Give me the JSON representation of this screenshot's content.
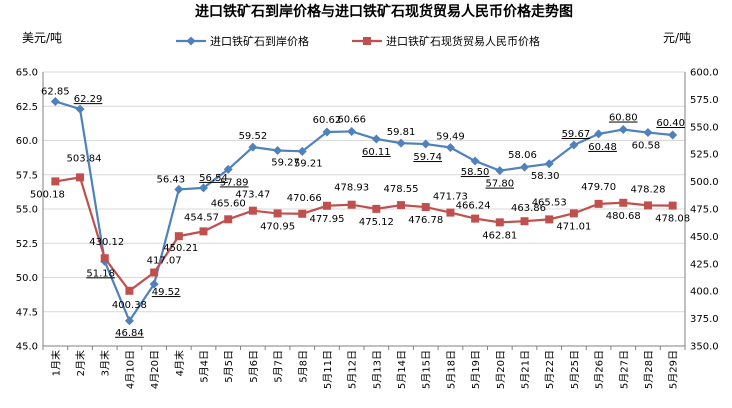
{
  "chart_data": {
    "type": "line",
    "title": "进口铁矿石到岸价格与进口铁矿石现货贸易人民币价格走势图",
    "ylabel_left": "美元/吨",
    "ylabel_right": "元/吨",
    "ylim_left": [
      45.0,
      65.0
    ],
    "yticks_left": [
      "45.0",
      "47.5",
      "50.0",
      "52.5",
      "55.0",
      "57.5",
      "60.0",
      "62.5",
      "65.0"
    ],
    "ylim_right": [
      350.0,
      600.0
    ],
    "yticks_right": [
      "350.0",
      "375.0",
      "400.0",
      "425.0",
      "450.0",
      "475.0",
      "500.0",
      "525.0",
      "550.0",
      "575.0",
      "600.0"
    ],
    "grid": true,
    "legend_position": "top",
    "categories": [
      "1月末",
      "2月末",
      "3月末",
      "4月10日",
      "4月20日",
      "4月末",
      "5月4日",
      "5月5日",
      "5月6日",
      "5月7日",
      "5月8日",
      "5月11日",
      "5月12日",
      "5月13日",
      "5月14日",
      "5月15日",
      "5月18日",
      "5月19日",
      "5月20日",
      "5月21日",
      "5月22日",
      "5月25日",
      "5月26日",
      "5月27日",
      "5月28日",
      "5月29日"
    ],
    "series": [
      {
        "name": "进口铁矿石到岸价格",
        "axis": "left",
        "color": "#4f81bd",
        "marker": "diamond",
        "values": [
          62.85,
          62.29,
          51.18,
          46.84,
          49.52,
          56.43,
          56.54,
          57.89,
          59.52,
          59.27,
          59.21,
          60.62,
          60.66,
          60.11,
          59.81,
          59.74,
          59.49,
          58.5,
          57.8,
          58.06,
          58.3,
          59.67,
          60.48,
          60.8,
          60.58,
          60.4
        ],
        "labels": [
          "62.85",
          "62.29",
          "51.18",
          "46.84",
          "49.52",
          "56.43",
          "56.54",
          "57.89",
          "59.52",
          "59.27",
          "59.21",
          "60.62",
          "60.66",
          "60.11",
          "59.81",
          "59.74",
          "59.49",
          "58.50",
          "57.80",
          "58.06",
          "58.30",
          "59.67",
          "60.48",
          "60.80",
          "60.58",
          "60.40"
        ]
      },
      {
        "name": "进口铁矿石现货贸易人民币价格",
        "axis": "right",
        "color": "#c0504d",
        "marker": "square",
        "values": [
          500.18,
          503.84,
          430.12,
          400.38,
          417.07,
          450.21,
          454.57,
          465.6,
          473.47,
          470.95,
          470.66,
          477.95,
          478.93,
          475.12,
          478.55,
          476.78,
          471.73,
          466.24,
          462.81,
          463.86,
          465.53,
          471.01,
          479.7,
          480.68,
          478.28,
          478.08
        ],
        "labels": [
          "500.18",
          "503.84",
          "430.12",
          "400.38",
          "417.07",
          "450.21",
          "454.57",
          "465.60",
          "473.47",
          "470.95",
          "470.66",
          "477.95",
          "478.93",
          "475.12",
          "478.55",
          "476.78",
          "471.73",
          "466.24",
          "462.81",
          "463.86",
          "465.53",
          "471.01",
          "479.70",
          "480.68",
          "478.28",
          "478.08"
        ]
      }
    ]
  }
}
